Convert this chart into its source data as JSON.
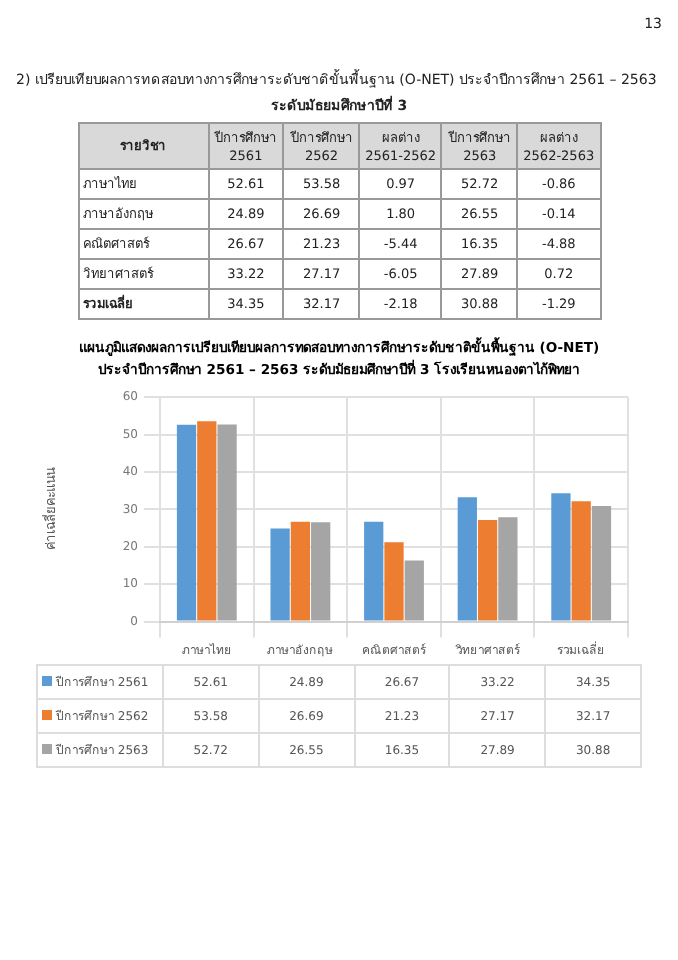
{
  "chart_data": [
    {
      "type": "heatmap",
      "title": "2) เปรียบเทียบผลการทดสอบทางการศึกษาระดับชาติขั้นพื้นฐาน (O-NET) ประจำปีการศึกษา 2561 – 2563",
      "subtitle": "ระดับมัธยมศึกษาปีที่ 3",
      "ylabel": "รายวิชา",
      "annotations": [
        "13"
      ],
      "categories": [
        "ปีการศึกษา 2561",
        "ปีการศึกษา 2562",
        "ผลต่าง 2561-2562",
        "ปีการศึกษา 2563",
        "ผลต่าง 2562-2563"
      ],
      "y_categories": [
        "ภาษาไทย",
        "ภาษาอังกฤษ",
        "คณิตศาสตร์",
        "วิทยาศาสตร์",
        "รวมเฉลี่ย"
      ],
      "cells": [
        [
          52.61,
          53.58,
          0.97,
          52.72,
          -0.86
        ],
        [
          24.89,
          26.69,
          1.8,
          26.55,
          -0.14
        ],
        [
          26.67,
          21.23,
          -5.44,
          16.35,
          -4.88
        ],
        [
          33.22,
          27.17,
          -6.05,
          27.89,
          0.72
        ],
        [
          34.35,
          32.17,
          -2.18,
          30.88,
          -1.29
        ]
      ],
      "cell_labels": [
        [
          "52.61",
          "53.58",
          "0.97",
          "52.72",
          "-0.86"
        ],
        [
          "24.89",
          "26.69",
          "1.80",
          "26.55",
          "-0.14"
        ],
        [
          "26.67",
          "21.23",
          "-5.44",
          "16.35",
          "-4.88"
        ],
        [
          "33.22",
          "27.17",
          "-6.05",
          "27.89",
          "0.72"
        ],
        [
          "34.35",
          "32.17",
          "-2.18",
          "30.88",
          "-1.29"
        ]
      ],
      "data_labels": true
    },
    {
      "type": "bar",
      "title": "แผนภูมิแสดงผลการเปรียบเทียบผลการทดสอบทางการศึกษาระดับชาติขั้นพื้นฐาน (O-NET)",
      "subtitle": "ประจำปีการศึกษา 2561 – 2563 ระดับมัธยมศึกษาปีที่ 3 โรงเรียนหนองตาไก้พิทยา",
      "ylabel": "ค่าเฉลี่ยคะแนน",
      "categories": [
        "ภาษาไทย",
        "ภาษาอังกฤษ",
        "คณิตศาสตร์",
        "วิทยาศาสตร์",
        "รวมเฉลี่ย"
      ],
      "series": [
        {
          "name": "ปีการศึกษา 2561",
          "color": "#5b9bd5",
          "values": [
            52.61,
            24.89,
            26.67,
            33.22,
            34.35
          ]
        },
        {
          "name": "ปีการศึกษา 2562",
          "color": "#ed7d31",
          "values": [
            53.58,
            26.69,
            21.23,
            27.17,
            32.17
          ]
        },
        {
          "name": "ปีการศึกษา 2563",
          "color": "#a5a5a5",
          "values": [
            52.72,
            26.55,
            16.35,
            27.89,
            30.88
          ]
        }
      ],
      "ylim": [
        0,
        60
      ],
      "yticks": [
        0,
        10,
        20,
        30,
        40,
        50,
        60
      ],
      "grid": true,
      "legend": "bottom",
      "data_labels": true
    }
  ]
}
